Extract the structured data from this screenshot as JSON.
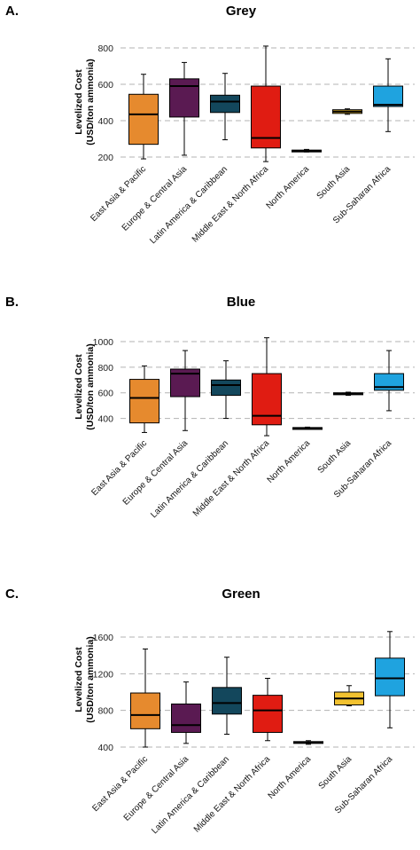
{
  "chart_data": [
    {
      "type": "box",
      "panel_label": "A.",
      "title": "Grey",
      "ylabel_line1": "Levelized Cost",
      "ylabel_line2": "(USD/ton ammonia)",
      "ylim": [
        200,
        800
      ],
      "yticks": [
        "200",
        "400",
        "600",
        "800"
      ],
      "categories": [
        "East Asia & Pacific",
        "Europe & Central Asia",
        "Latin America & Caribbean",
        "Middle East & North Africa",
        "North America",
        "South Asia",
        "Sub-Saharan Africa"
      ],
      "colors": [
        "#E68A2E",
        "#5A1A52",
        "#13475C",
        "#E01C12",
        "#111111",
        "#F2C230",
        "#1FA3DF"
      ],
      "boxes": [
        {
          "min": 190,
          "q1": 270,
          "median": 435,
          "q3": 545,
          "max": 655
        },
        {
          "min": 210,
          "q1": 420,
          "median": 590,
          "q3": 630,
          "max": 720
        },
        {
          "min": 295,
          "q1": 445,
          "median": 505,
          "q3": 540,
          "max": 660
        },
        {
          "min": 175,
          "q1": 250,
          "median": 305,
          "q3": 590,
          "max": 810
        },
        {
          "min": 228,
          "q1": 232,
          "median": 235,
          "q3": 238,
          "max": 242
        },
        {
          "min": 435,
          "q1": 440,
          "median": 450,
          "q3": 460,
          "max": 465
        },
        {
          "min": 340,
          "q1": 478,
          "median": 487,
          "q3": 590,
          "max": 740
        }
      ]
    },
    {
      "type": "box",
      "panel_label": "B.",
      "title": "Blue",
      "ylabel_line1": "Levelized Cost",
      "ylabel_line2": "(USD/ton ammonia)",
      "ylim": [
        300,
        1000
      ],
      "yticks": [
        "400",
        "600",
        "800",
        "1000"
      ],
      "categories": [
        "East Asia & Pacific",
        "Europe & Central Asia",
        "Latin America & Caribbean",
        "Middle East & North Africa",
        "North America",
        "South Asia",
        "Sub-Saharan Africa"
      ],
      "colors": [
        "#E68A2E",
        "#5A1A52",
        "#13475C",
        "#E01C12",
        "#111111",
        "#F2C230",
        "#1FA3DF"
      ],
      "boxes": [
        {
          "min": 290,
          "q1": 365,
          "median": 560,
          "q3": 705,
          "max": 810
        },
        {
          "min": 305,
          "q1": 570,
          "median": 750,
          "q3": 785,
          "max": 930
        },
        {
          "min": 400,
          "q1": 580,
          "median": 660,
          "q3": 700,
          "max": 850
        },
        {
          "min": 265,
          "q1": 350,
          "median": 420,
          "q3": 750,
          "max": 1030
        },
        {
          "min": 318,
          "q1": 322,
          "median": 325,
          "q3": 328,
          "max": 332
        },
        {
          "min": 580,
          "q1": 585,
          "median": 592,
          "q3": 600,
          "max": 605
        },
        {
          "min": 460,
          "q1": 620,
          "median": 645,
          "q3": 750,
          "max": 930
        }
      ]
    },
    {
      "type": "box",
      "panel_label": "C.",
      "title": "Green",
      "ylabel_line1": "Levelized Cost",
      "ylabel_line2": "(USD/ton ammonia)",
      "ylim": [
        400,
        1600
      ],
      "yticks": [
        "400",
        "800",
        "1200",
        "1600"
      ],
      "categories": [
        "East Asia & Pacific",
        "Europe & Central Asia",
        "Latin America & Caribbean",
        "Middle East & North Africa",
        "North America",
        "South Asia",
        "Sub-Saharan Africa"
      ],
      "colors": [
        "#E68A2E",
        "#5A1A52",
        "#13475C",
        "#E01C12",
        "#111111",
        "#F2C230",
        "#1FA3DF"
      ],
      "boxes": [
        {
          "min": 400,
          "q1": 600,
          "median": 750,
          "q3": 990,
          "max": 1470
        },
        {
          "min": 440,
          "q1": 560,
          "median": 640,
          "q3": 870,
          "max": 1110
        },
        {
          "min": 540,
          "q1": 760,
          "median": 880,
          "q3": 1050,
          "max": 1380
        },
        {
          "min": 470,
          "q1": 560,
          "median": 800,
          "q3": 965,
          "max": 1150
        },
        {
          "min": 430,
          "q1": 440,
          "median": 450,
          "q3": 460,
          "max": 470
        },
        {
          "min": 850,
          "q1": 860,
          "median": 930,
          "q3": 1000,
          "max": 1070
        },
        {
          "min": 610,
          "q1": 960,
          "median": 1150,
          "q3": 1370,
          "max": 1660
        }
      ]
    }
  ]
}
